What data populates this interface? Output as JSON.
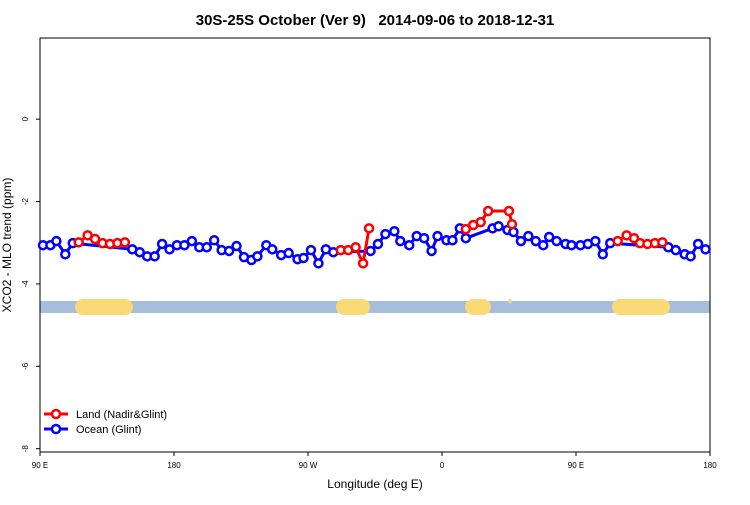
{
  "chart_data": {
    "type": "line",
    "title": "30S-25S October (Ver 9)   2014-09-06 to 2018-12-31",
    "xlabel": "Longitude (deg E)",
    "ylabel": "XCO2 - MLO trend (ppm)",
    "xlim": [
      90,
      540
    ],
    "ylim": [
      -8.08,
      1.97
    ],
    "xticks": [
      {
        "value": 90,
        "label": "90 E"
      },
      180,
      {
        "value": 270,
        "label": "90 W"
      },
      {
        "value": 360,
        "label": "0"
      },
      {
        "value": 450,
        "label": "90 E"
      },
      {
        "value": 540,
        "label": "180"
      }
    ],
    "yticks": [
      0,
      -2,
      -4,
      -6,
      -8
    ],
    "legend": "bottom-left",
    "series": [
      {
        "name": "Land (Nadir&Glint)",
        "color": "#ff0000",
        "x": [
          116,
          122,
          127,
          132,
          137,
          142,
          147,
          null,
          292,
          297,
          302,
          307,
          311,
          null,
          376,
          381,
          386,
          391,
          405,
          407,
          null,
          478,
          484,
          489,
          493,
          498,
          503,
          508
        ],
        "values": [
          -2.99,
          -2.82,
          -2.91,
          -3.01,
          -3.03,
          -3.01,
          -2.99,
          null,
          -3.18,
          -3.18,
          -3.11,
          -3.5,
          -2.65,
          null,
          -2.67,
          -2.57,
          -2.5,
          -2.23,
          -2.23,
          -2.55,
          null,
          -2.96,
          -2.82,
          -2.89,
          -3.01,
          -3.03,
          -3.01,
          -2.99
        ]
      },
      {
        "name": "Ocean (Glint)",
        "color": "#0000ff",
        "x": [
          92,
          97,
          101,
          107,
          112,
          152,
          157,
          162,
          167,
          172,
          177,
          182,
          187,
          192,
          197,
          202,
          207,
          212,
          217,
          222,
          227,
          232,
          236,
          242,
          246,
          252,
          257,
          263,
          267,
          272,
          277,
          282,
          287,
          312,
          317,
          322,
          328,
          332,
          338,
          343,
          348,
          353,
          357,
          363,
          367,
          372,
          376,
          394,
          398,
          404,
          408,
          413,
          418,
          423,
          428,
          432,
          437,
          443,
          447,
          453,
          458,
          463,
          468,
          473,
          512,
          517,
          523,
          527,
          532,
          537
        ],
        "values": [
          -3.06,
          -3.06,
          -2.96,
          -3.28,
          -3.01,
          -3.16,
          -3.23,
          -3.33,
          -3.33,
          -3.03,
          -3.16,
          -3.06,
          -3.06,
          -2.96,
          -3.11,
          -3.11,
          -2.94,
          -3.18,
          -3.2,
          -3.08,
          -3.35,
          -3.42,
          -3.33,
          -3.06,
          -3.16,
          -3.3,
          -3.25,
          -3.4,
          -3.37,
          -3.18,
          -3.5,
          -3.16,
          -3.23,
          -3.2,
          -3.03,
          -2.79,
          -2.72,
          -2.96,
          -3.06,
          -2.84,
          -2.89,
          -3.2,
          -2.84,
          -2.94,
          -2.94,
          -2.65,
          -2.89,
          -2.65,
          -2.6,
          -2.69,
          -2.74,
          -2.96,
          -2.84,
          -2.96,
          -3.06,
          -2.86,
          -2.96,
          -3.03,
          -3.06,
          -3.06,
          -3.03,
          -2.96,
          -3.28,
          -3.01,
          -3.11,
          -3.18,
          -3.28,
          -3.33,
          -3.03,
          -3.16
        ]
      }
    ]
  }
}
